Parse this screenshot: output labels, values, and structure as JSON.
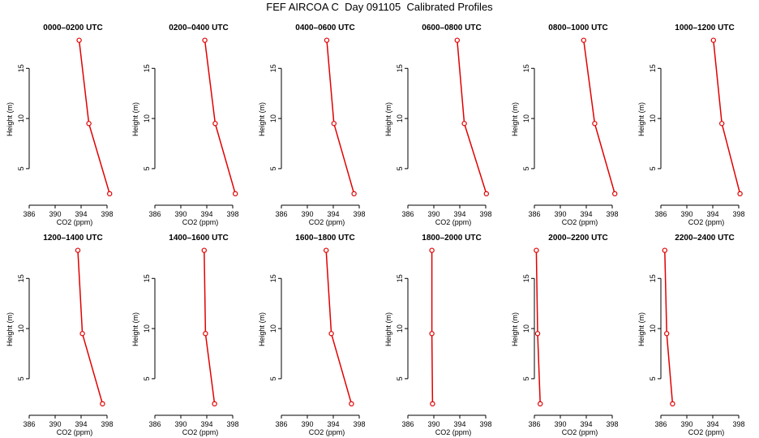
{
  "title": "FEF AIRCOA C  Day 091105  Calibrated Profiles",
  "colors": {
    "profile": "#e00000",
    "axis": "#000000"
  },
  "chart_data": [
    {
      "type": "line",
      "title": "0000–0200 UTC",
      "xlabel": "CO2 (ppm)",
      "ylabel": "Height (m)",
      "xlim": [
        386,
        399
      ],
      "ylim": [
        2,
        18.5
      ],
      "xticks": [
        386,
        390,
        394,
        398
      ],
      "yticks": [
        5,
        10,
        15
      ],
      "series": [
        {
          "name": "profile",
          "x": [
            398.4,
            395.2,
            393.7
          ],
          "y": [
            2.5,
            9.5,
            17.8
          ]
        }
      ]
    },
    {
      "type": "line",
      "title": "0200–0400 UTC",
      "xlabel": "CO2 (ppm)",
      "ylabel": "Height (m)",
      "xlim": [
        386,
        399
      ],
      "ylim": [
        2,
        18.5
      ],
      "xticks": [
        386,
        390,
        394,
        398
      ],
      "yticks": [
        5,
        10,
        15
      ],
      "series": [
        {
          "name": "profile",
          "x": [
            398.4,
            395.3,
            393.7
          ],
          "y": [
            2.5,
            9.5,
            17.8
          ]
        }
      ]
    },
    {
      "type": "line",
      "title": "0400–0600 UTC",
      "xlabel": "CO2 (ppm)",
      "ylabel": "Height (m)",
      "xlim": [
        386,
        399
      ],
      "ylim": [
        2,
        18.5
      ],
      "xticks": [
        386,
        390,
        394,
        398
      ],
      "yticks": [
        5,
        10,
        15
      ],
      "series": [
        {
          "name": "profile",
          "x": [
            397.2,
            394.1,
            393.0
          ],
          "y": [
            2.5,
            9.5,
            17.8
          ]
        }
      ]
    },
    {
      "type": "line",
      "title": "0600–0800 UTC",
      "xlabel": "CO2 (ppm)",
      "ylabel": "Height (m)",
      "xlim": [
        386,
        399
      ],
      "ylim": [
        2,
        18.5
      ],
      "xticks": [
        386,
        390,
        394,
        398
      ],
      "yticks": [
        5,
        10,
        15
      ],
      "series": [
        {
          "name": "profile",
          "x": [
            398.1,
            394.7,
            393.6
          ],
          "y": [
            2.5,
            9.5,
            17.8
          ]
        }
      ]
    },
    {
      "type": "line",
      "title": "0800–1000 UTC",
      "xlabel": "CO2 (ppm)",
      "ylabel": "Height (m)",
      "xlim": [
        386,
        399
      ],
      "ylim": [
        2,
        18.5
      ],
      "xticks": [
        386,
        390,
        394,
        398
      ],
      "yticks": [
        5,
        10,
        15
      ],
      "series": [
        {
          "name": "profile",
          "x": [
            398.4,
            395.3,
            393.6
          ],
          "y": [
            2.5,
            9.5,
            17.8
          ]
        }
      ]
    },
    {
      "type": "line",
      "title": "1000–1200 UTC",
      "xlabel": "CO2 (ppm)",
      "ylabel": "Height (m)",
      "xlim": [
        386,
        399
      ],
      "ylim": [
        2,
        18.5
      ],
      "xticks": [
        386,
        390,
        394,
        398
      ],
      "yticks": [
        5,
        10,
        15
      ],
      "series": [
        {
          "name": "profile",
          "x": [
            398.2,
            395.4,
            394.1
          ],
          "y": [
            2.5,
            9.5,
            17.8
          ]
        }
      ]
    },
    {
      "type": "line",
      "title": "1200–1400 UTC",
      "xlabel": "CO2 (ppm)",
      "ylabel": "Height (m)",
      "xlim": [
        386,
        399
      ],
      "ylim": [
        2,
        18.5
      ],
      "xticks": [
        386,
        390,
        394,
        398
      ],
      "yticks": [
        5,
        10,
        15
      ],
      "series": [
        {
          "name": "profile",
          "x": [
            397.3,
            394.2,
            393.5
          ],
          "y": [
            2.5,
            9.5,
            17.8
          ]
        }
      ]
    },
    {
      "type": "line",
      "title": "1400–1600 UTC",
      "xlabel": "CO2 (ppm)",
      "ylabel": "Height (m)",
      "xlim": [
        386,
        399
      ],
      "ylim": [
        2,
        18.5
      ],
      "xticks": [
        386,
        390,
        394,
        398
      ],
      "yticks": [
        5,
        10,
        15
      ],
      "series": [
        {
          "name": "profile",
          "x": [
            395.2,
            393.8,
            393.6
          ],
          "y": [
            2.5,
            9.5,
            17.8
          ]
        }
      ]
    },
    {
      "type": "line",
      "title": "1600–1800 UTC",
      "xlabel": "CO2 (ppm)",
      "ylabel": "Height (m)",
      "xlim": [
        386,
        399
      ],
      "ylim": [
        2,
        18.5
      ],
      "xticks": [
        386,
        390,
        394,
        398
      ],
      "yticks": [
        5,
        10,
        15
      ],
      "series": [
        {
          "name": "profile",
          "x": [
            396.8,
            393.7,
            392.9
          ],
          "y": [
            2.5,
            9.5,
            17.8
          ]
        }
      ]
    },
    {
      "type": "line",
      "title": "1800–2000 UTC",
      "xlabel": "CO2 (ppm)",
      "ylabel": "Height (m)",
      "xlim": [
        386,
        399
      ],
      "ylim": [
        2,
        18.5
      ],
      "xticks": [
        386,
        390,
        394,
        398
      ],
      "yticks": [
        5,
        10,
        15
      ],
      "series": [
        {
          "name": "profile",
          "x": [
            389.8,
            389.7,
            389.7
          ],
          "y": [
            2.5,
            9.5,
            17.8
          ]
        }
      ]
    },
    {
      "type": "line",
      "title": "2000–2200 UTC",
      "xlabel": "CO2 (ppm)",
      "ylabel": "Height (m)",
      "xlim": [
        386,
        399
      ],
      "ylim": [
        2,
        18.5
      ],
      "xticks": [
        386,
        390,
        394,
        398
      ],
      "yticks": [
        5,
        10,
        15
      ],
      "series": [
        {
          "name": "profile",
          "x": [
            386.9,
            386.5,
            386.3
          ],
          "y": [
            2.5,
            9.5,
            17.8
          ]
        }
      ]
    },
    {
      "type": "line",
      "title": "2200–2400 UTC",
      "xlabel": "CO2 (ppm)",
      "ylabel": "Height (m)",
      "xlim": [
        386,
        399
      ],
      "ylim": [
        2,
        18.5
      ],
      "xticks": [
        386,
        390,
        394,
        398
      ],
      "yticks": [
        5,
        10,
        15
      ],
      "series": [
        {
          "name": "profile",
          "x": [
            387.8,
            386.9,
            386.6
          ],
          "y": [
            2.5,
            9.5,
            17.8
          ]
        }
      ]
    }
  ]
}
